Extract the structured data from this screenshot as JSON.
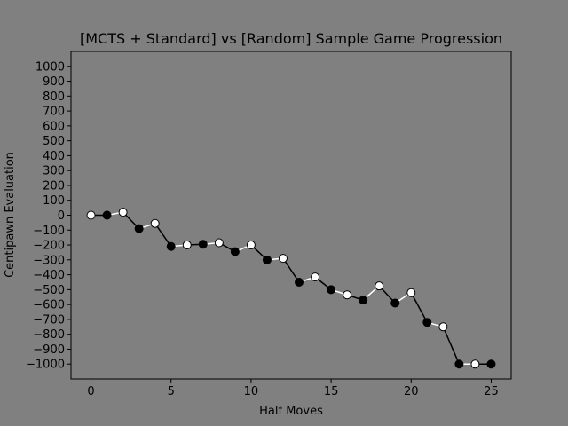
{
  "chart_data": {
    "type": "line",
    "title": "[MCTS + Standard] vs [Random] Sample Game Progression",
    "xlabel": "Half Moves",
    "ylabel": "Centipawn Evaluation",
    "xlim": [
      -1.25,
      26.25
    ],
    "ylim": [
      -1100,
      1100
    ],
    "xticks": [
      0,
      5,
      10,
      15,
      20,
      25
    ],
    "yticks": [
      -1000,
      -900,
      -800,
      -700,
      -600,
      -500,
      -400,
      -300,
      -200,
      -100,
      0,
      100,
      200,
      300,
      400,
      500,
      600,
      700,
      800,
      900,
      1000
    ],
    "grid": false,
    "background_color": "#808080",
    "series": [
      {
        "x": [
          0,
          1,
          2,
          3,
          4,
          5,
          6,
          7,
          8,
          9,
          10,
          11,
          12,
          13,
          14,
          15,
          16,
          17,
          18,
          19,
          20,
          21,
          22,
          23,
          24,
          25
        ],
        "values": [
          0,
          0,
          20,
          -90,
          -55,
          -210,
          -200,
          -195,
          -185,
          -245,
          -200,
          -300,
          -290,
          -450,
          -415,
          -500,
          -535,
          -570,
          -475,
          -590,
          -520,
          -720,
          -750,
          -1000,
          -1000,
          -1000
        ],
        "segment_colors": [
          "#000000",
          "#ffffff"
        ],
        "marker_colors": [
          "#ffffff",
          "#000000"
        ]
      }
    ]
  }
}
